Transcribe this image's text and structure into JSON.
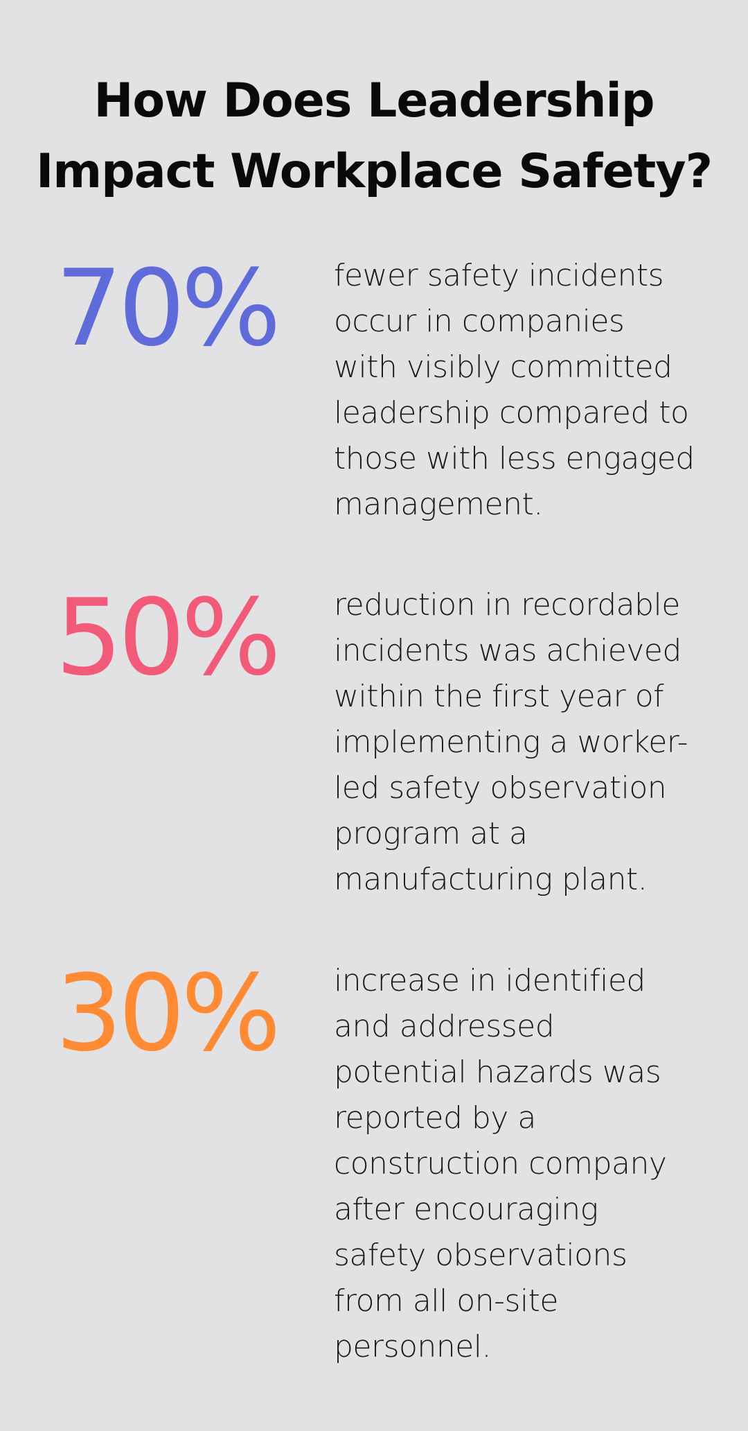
{
  "title_lines": [
    "How Does Leadership",
    "Impact Workplace Safety?"
  ],
  "stats": [
    {
      "value": "70%",
      "color": "#5f6bd9",
      "description_lines": [
        "fewer safety incidents",
        "occur in companies",
        "with visibly committed",
        "leadership compared to",
        "those with less engaged",
        "management."
      ]
    },
    {
      "value": "50%",
      "color": "#f25a7a",
      "description_lines": [
        "reduction in recordable",
        "incidents was achieved",
        "within the first year of",
        "implementing a worker-",
        "led safety observation",
        "program at a",
        "manufacturing plant."
      ]
    },
    {
      "value": "30%",
      "color": "#fe8b34",
      "description_lines": [
        "increase in identified",
        "and addressed",
        "potential hazards was",
        "reported by a",
        "construction company",
        "after encouraging",
        "safety observations",
        "from all on-site",
        "personnel."
      ]
    }
  ]
}
